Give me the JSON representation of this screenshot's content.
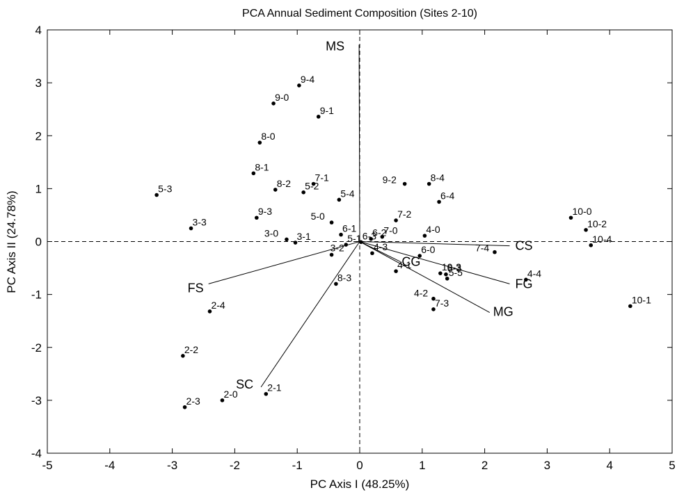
{
  "chart_data": {
    "type": "scatter",
    "title": "PCA Annual Sediment Composition (Sites 2-10)",
    "xlabel": "PC Axis I (48.25%)",
    "ylabel": "PC Axis II (24.78%)",
    "xlim": [
      -5,
      5
    ],
    "ylim": [
      -4,
      4
    ],
    "xticks": [
      "-5",
      "-4",
      "-3",
      "-2",
      "-1",
      "0",
      "1",
      "2",
      "3",
      "4",
      "5"
    ],
    "yticks": [
      "-4",
      "-3",
      "-2",
      "-1",
      "0",
      "1",
      "2",
      "3",
      "4"
    ],
    "grid": false,
    "zero_lines": "dashed",
    "point_color": "#000000",
    "points": [
      {
        "label": "9-4",
        "x": -0.97,
        "y": 2.95
      },
      {
        "label": "9-0",
        "x": -1.38,
        "y": 2.61
      },
      {
        "label": "9-1",
        "x": -0.66,
        "y": 2.36
      },
      {
        "label": "8-0",
        "x": -1.6,
        "y": 1.87
      },
      {
        "label": "8-1",
        "x": -1.7,
        "y": 1.29
      },
      {
        "label": "7-1",
        "x": -0.74,
        "y": 1.09
      },
      {
        "label": "8-2",
        "x": -1.35,
        "y": 0.98
      },
      {
        "label": "5-2",
        "x": -0.9,
        "y": 0.93
      },
      {
        "label": "5-3",
        "x": -3.25,
        "y": 0.88
      },
      {
        "label": "5-4",
        "x": -0.33,
        "y": 0.79
      },
      {
        "label": "9-3",
        "x": -1.65,
        "y": 0.45
      },
      {
        "label": "5-0",
        "x": -0.45,
        "y": 0.36
      },
      {
        "label": "3-3",
        "x": -2.7,
        "y": 0.25
      },
      {
        "label": "6-1",
        "x": -0.3,
        "y": 0.13
      },
      {
        "label": "3-0",
        "x": -1.17,
        "y": 0.04
      },
      {
        "label": "3-1",
        "x": -1.03,
        "y": -0.02
      },
      {
        "label": "5-1",
        "x": -0.22,
        "y": -0.06
      },
      {
        "label": "3-2",
        "x": -0.45,
        "y": -0.25
      },
      {
        "label": "6-3",
        "x": 0.02,
        "y": -0.01
      },
      {
        "label": "6-2",
        "x": 0.18,
        "y": 0.05
      },
      {
        "label": "7-0",
        "x": 0.36,
        "y": 0.09
      },
      {
        "label": "7-2",
        "x": 0.58,
        "y": 0.4
      },
      {
        "label": "9-2",
        "x": 0.72,
        "y": 1.09
      },
      {
        "label": "8-4",
        "x": 1.11,
        "y": 1.09
      },
      {
        "label": "6-4",
        "x": 1.27,
        "y": 0.75
      },
      {
        "label": "4-0",
        "x": 1.04,
        "y": 0.11
      },
      {
        "label": "4-3",
        "x": 0.2,
        "y": -0.22
      },
      {
        "label": "6-0",
        "x": 0.96,
        "y": -0.27
      },
      {
        "label": "4-1",
        "x": 0.58,
        "y": -0.56
      },
      {
        "label": "10-3",
        "x": 1.29,
        "y": -0.6
      },
      {
        "label": "8-3",
        "x": 1.38,
        "y": -0.62
      },
      {
        "label": "5-5",
        "x": 1.4,
        "y": -0.7
      },
      {
        "label": "7-4",
        "x": 2.16,
        "y": -0.2
      },
      {
        "label": "8-3",
        "x": -0.38,
        "y": -0.8
      },
      {
        "label": "4-4",
        "x": 2.66,
        "y": -0.72
      },
      {
        "label": "4-2",
        "x": 1.18,
        "y": -1.08
      },
      {
        "label": "7-3",
        "x": 1.18,
        "y": -1.28
      },
      {
        "label": "10-0",
        "x": 3.38,
        "y": 0.45
      },
      {
        "label": "10-2",
        "x": 3.62,
        "y": 0.22
      },
      {
        "label": "10-4",
        "x": 3.7,
        "y": -0.07
      },
      {
        "label": "10-1",
        "x": 4.33,
        "y": -1.22
      },
      {
        "label": "2-4",
        "x": -2.4,
        "y": -1.32
      },
      {
        "label": "2-2",
        "x": -2.83,
        "y": -2.16
      },
      {
        "label": "2-1",
        "x": -1.5,
        "y": -2.88
      },
      {
        "label": "2-0",
        "x": -2.2,
        "y": -3.0
      },
      {
        "label": "2-3",
        "x": -2.8,
        "y": -3.13
      }
    ],
    "vectors": [
      {
        "label": "MS",
        "x": -0.01,
        "y": 3.72
      },
      {
        "label": "CS",
        "x": 2.4,
        "y": -0.08
      },
      {
        "label": "FG",
        "x": 2.4,
        "y": -0.8
      },
      {
        "label": "MG",
        "x": 2.08,
        "y": -1.34
      },
      {
        "label": "CG",
        "x": 0.65,
        "y": -0.38
      },
      {
        "label": "FS",
        "x": -2.42,
        "y": -0.8
      },
      {
        "label": "SC",
        "x": -1.58,
        "y": -2.75
      }
    ]
  }
}
